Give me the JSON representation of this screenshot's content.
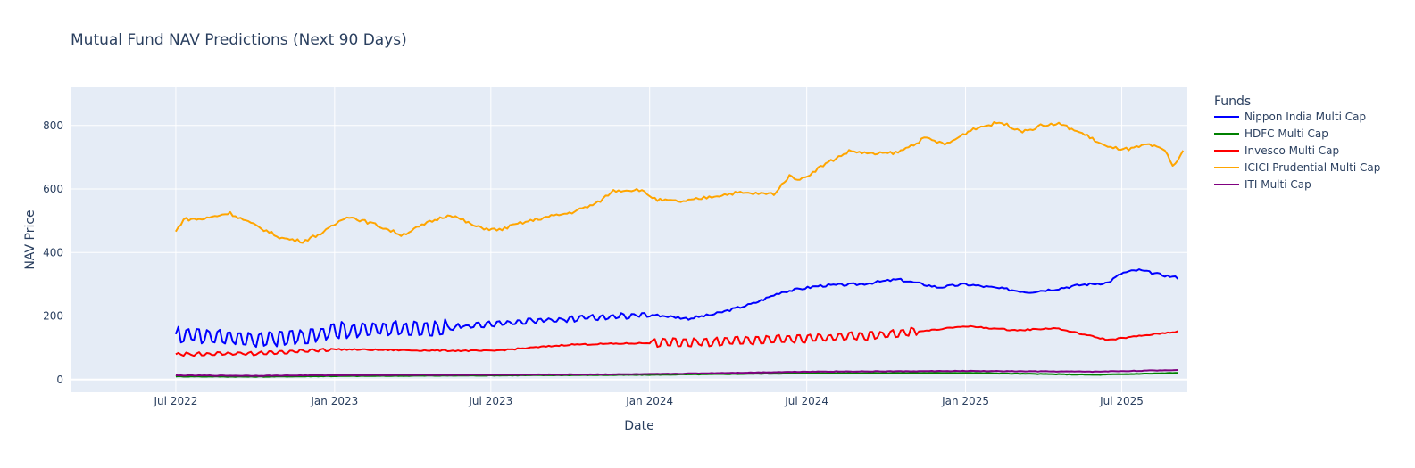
{
  "chart_data": {
    "type": "line",
    "title": "Mutual Fund NAV Predictions (Next 90 Days)",
    "xlabel": "Date",
    "ylabel": "NAV Price",
    "legend_title": "Funds",
    "legend_position": "right",
    "grid": true,
    "xlim": [
      "2022-03-01",
      "2025-09-15"
    ],
    "ylim": [
      -40,
      920
    ],
    "yticks": [
      0,
      200,
      400,
      600,
      800
    ],
    "xticks": [
      {
        "date": "2022-07-01",
        "label": "Jul 2022"
      },
      {
        "date": "2023-01-01",
        "label": "Jan 2023"
      },
      {
        "date": "2023-07-01",
        "label": "Jul 2023"
      },
      {
        "date": "2024-01-01",
        "label": "Jan 2024"
      },
      {
        "date": "2024-07-01",
        "label": "Jul 2024"
      },
      {
        "date": "2025-01-01",
        "label": "Jan 2025"
      },
      {
        "date": "2025-07-01",
        "label": "Jul 2025"
      }
    ],
    "series": [
      {
        "name": "Nippon India Multi Cap",
        "color": "#0000ff",
        "noise": 4,
        "osc": [
          [
            2022.5,
            2023.35,
            22
          ],
          [
            2023.35,
            2024.0,
            6
          ]
        ],
        "points": [
          [
            "2022-07-01",
            140
          ],
          [
            "2022-08-15",
            138
          ],
          [
            "2022-10-01",
            125
          ],
          [
            "2022-11-15",
            130
          ],
          [
            "2023-01-01",
            155
          ],
          [
            "2023-03-01",
            158
          ],
          [
            "2023-05-01",
            160
          ],
          [
            "2023-07-01",
            175
          ],
          [
            "2023-09-01",
            188
          ],
          [
            "2023-11-01",
            195
          ],
          [
            "2024-01-01",
            205
          ],
          [
            "2024-02-15",
            192
          ],
          [
            "2024-03-15",
            205
          ],
          [
            "2024-05-01",
            240
          ],
          [
            "2024-06-01",
            275
          ],
          [
            "2024-07-15",
            295
          ],
          [
            "2024-09-01",
            300
          ],
          [
            "2024-10-15",
            315
          ],
          [
            "2024-12-01",
            290
          ],
          [
            "2025-01-01",
            300
          ],
          [
            "2025-02-15",
            285
          ],
          [
            "2025-03-15",
            275
          ],
          [
            "2025-04-15",
            285
          ],
          [
            "2025-05-15",
            298
          ],
          [
            "2025-06-15",
            305
          ],
          [
            "2025-07-01",
            335
          ],
          [
            "2025-07-20",
            345
          ],
          [
            "2025-08-15",
            330
          ],
          [
            "2025-09-05",
            320
          ]
        ]
      },
      {
        "name": "HDFC Multi Cap",
        "color": "#008000",
        "noise": 0.8,
        "osc": [],
        "points": [
          [
            "2022-07-01",
            10
          ],
          [
            "2022-10-01",
            9
          ],
          [
            "2023-01-01",
            11
          ],
          [
            "2023-07-01",
            13
          ],
          [
            "2024-01-01",
            15
          ],
          [
            "2024-07-01",
            20
          ],
          [
            "2025-01-01",
            21
          ],
          [
            "2025-06-01",
            15
          ],
          [
            "2025-09-05",
            21
          ]
        ]
      },
      {
        "name": "Invesco Multi Cap",
        "color": "#ff0000",
        "noise": 2,
        "osc": [
          [
            2022.5,
            2023.0,
            4
          ],
          [
            2024.0,
            2024.85,
            12
          ]
        ],
        "points": [
          [
            "2022-07-01",
            80
          ],
          [
            "2022-10-01",
            82
          ],
          [
            "2023-01-01",
            95
          ],
          [
            "2023-04-01",
            92
          ],
          [
            "2023-07-01",
            90
          ],
          [
            "2023-10-01",
            110
          ],
          [
            "2024-01-01",
            115
          ],
          [
            "2024-04-01",
            120
          ],
          [
            "2024-07-01",
            130
          ],
          [
            "2024-10-01",
            140
          ],
          [
            "2024-12-01",
            158
          ],
          [
            "2025-01-01",
            168
          ],
          [
            "2025-03-01",
            155
          ],
          [
            "2025-04-15",
            162
          ],
          [
            "2025-06-15",
            125
          ],
          [
            "2025-07-15",
            135
          ],
          [
            "2025-09-05",
            152
          ]
        ]
      },
      {
        "name": "ICICI Prudential Multi Cap",
        "color": "#ffa500",
        "noise": 5,
        "osc": [],
        "points": [
          [
            "2022-07-01",
            465
          ],
          [
            "2022-07-10",
            505
          ],
          [
            "2022-08-01",
            505
          ],
          [
            "2022-09-01",
            525
          ],
          [
            "2022-10-01",
            485
          ],
          [
            "2022-11-01",
            445
          ],
          [
            "2022-11-25",
            435
          ],
          [
            "2022-12-20",
            465
          ],
          [
            "2023-01-15",
            515
          ],
          [
            "2023-02-15",
            490
          ],
          [
            "2023-03-20",
            455
          ],
          [
            "2023-04-20",
            495
          ],
          [
            "2023-05-15",
            520
          ],
          [
            "2023-06-15",
            480
          ],
          [
            "2023-07-10",
            470
          ],
          [
            "2023-08-01",
            490
          ],
          [
            "2023-09-01",
            510
          ],
          [
            "2023-10-01",
            525
          ],
          [
            "2023-11-01",
            555
          ],
          [
            "2023-11-20",
            595
          ],
          [
            "2023-12-20",
            598
          ],
          [
            "2024-01-10",
            565
          ],
          [
            "2024-02-10",
            560
          ],
          [
            "2024-03-10",
            575
          ],
          [
            "2024-04-10",
            588
          ],
          [
            "2024-05-10",
            585
          ],
          [
            "2024-05-25",
            585
          ],
          [
            "2024-06-10",
            640
          ],
          [
            "2024-06-25",
            630
          ],
          [
            "2024-07-20",
            675
          ],
          [
            "2024-08-20",
            720
          ],
          [
            "2024-09-15",
            710
          ],
          [
            "2024-10-15",
            715
          ],
          [
            "2024-11-15",
            760
          ],
          [
            "2024-12-10",
            740
          ],
          [
            "2025-01-10",
            790
          ],
          [
            "2025-02-10",
            810
          ],
          [
            "2025-03-10",
            780
          ],
          [
            "2025-03-30",
            800
          ],
          [
            "2025-04-20",
            805
          ],
          [
            "2025-05-20",
            770
          ],
          [
            "2025-06-15",
            730
          ],
          [
            "2025-07-10",
            725
          ],
          [
            "2025-08-01",
            740
          ],
          [
            "2025-08-20",
            720
          ],
          [
            "2025-08-30",
            670
          ],
          [
            "2025-09-10",
            720
          ]
        ]
      },
      {
        "name": "ITI Multi Cap",
        "color": "#800080",
        "noise": 0.8,
        "osc": [],
        "points": [
          [
            "2022-07-01",
            13
          ],
          [
            "2022-10-01",
            12
          ],
          [
            "2023-01-01",
            14
          ],
          [
            "2023-07-01",
            15
          ],
          [
            "2024-01-01",
            17
          ],
          [
            "2024-07-01",
            25
          ],
          [
            "2025-01-01",
            27
          ],
          [
            "2025-06-01",
            25
          ],
          [
            "2025-09-05",
            30
          ]
        ]
      }
    ]
  }
}
